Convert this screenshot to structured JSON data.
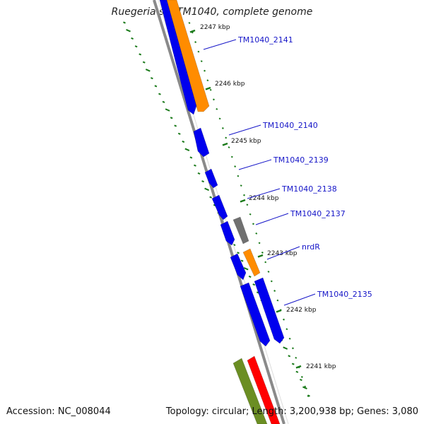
{
  "title": "Ruegeria sp. TM1040, complete genome",
  "footer": {
    "accession": "Accession: NC_008044",
    "summary": "Topology: circular; Length: 3,200,938 bp; Genes: 3,080"
  },
  "colors": {
    "backbone": "#8a8a8a",
    "tick": "#1a7a1a",
    "label": "#1515c8",
    "cds_forward": "#0000ee",
    "cds_reverse": "#ff8c00",
    "gray_feature": "#707070",
    "olive_feature": "#6b8e23",
    "red_feature": "#ff0000"
  },
  "ticks": [
    {
      "label": "2247 kbp"
    },
    {
      "label": "2246 kbp"
    },
    {
      "label": "2245 kbp"
    },
    {
      "label": "2244 kbp"
    },
    {
      "label": "2243 kbp"
    },
    {
      "label": "2242 kbp"
    },
    {
      "label": "2241 kbp"
    }
  ],
  "gene_labels": [
    "TM1040_2141",
    "TM1040_2140",
    "TM1040_2139",
    "TM1040_2138",
    "TM1040_2137",
    "nrdR",
    "TM1040_2135"
  ]
}
